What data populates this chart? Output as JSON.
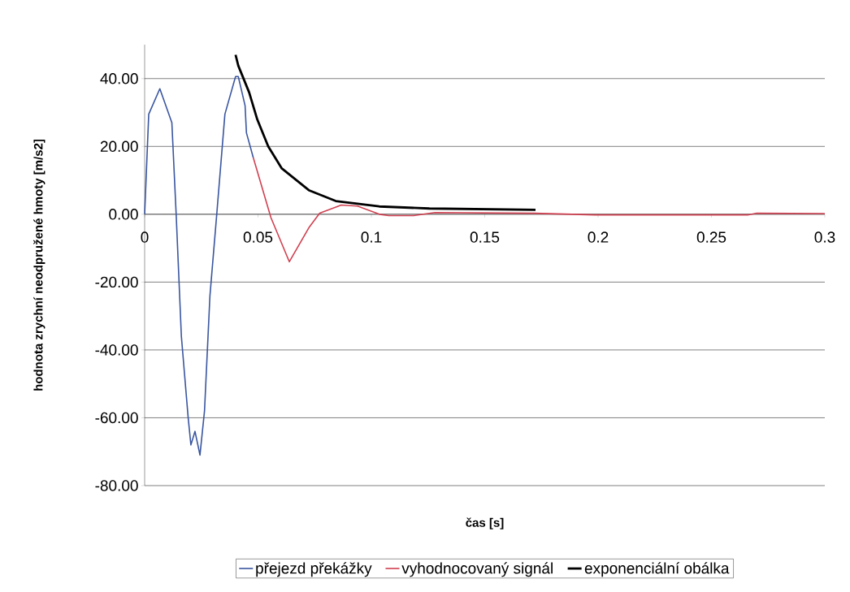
{
  "chart_data": {
    "type": "line",
    "xlabel": "čas [s]",
    "ylabel": "hodnota zrychní neodpružené hmoty [m/s2]",
    "xlim": [
      0,
      0.3
    ],
    "ylim": [
      -80,
      50
    ],
    "xticks": [
      0,
      0.05,
      0.1,
      0.15,
      0.2,
      0.25,
      0.3
    ],
    "yticks": [
      {
        "value": -80,
        "label": "-80.00"
      },
      {
        "value": -60,
        "label": "-60.00"
      },
      {
        "value": -40,
        "label": "-40.00"
      },
      {
        "value": -20,
        "label": "-20.00"
      },
      {
        "value": 0,
        "label": "0.00"
      },
      {
        "value": 20,
        "label": "20.00"
      },
      {
        "value": 40,
        "label": "40.00"
      }
    ],
    "grid": "y",
    "legend": "bottom",
    "marker": "none",
    "line_style": "solid",
    "series": [
      {
        "name": "přejezd překážky",
        "color": "#3a56a0",
        "x": [
          0,
          0.0018,
          0.0067,
          0.012,
          0.0139,
          0.0162,
          0.0192,
          0.0204,
          0.0222,
          0.0244,
          0.0264,
          0.0288,
          0.0318,
          0.0354,
          0.0401,
          0.0413,
          0.0443,
          0.0449,
          0.0479
        ],
        "values": [
          0,
          29.5,
          37,
          27,
          0,
          -36,
          -60,
          -68,
          -64,
          -71,
          -58,
          -24,
          0,
          29.5,
          40.6,
          40.6,
          32,
          24,
          16.7
        ]
      },
      {
        "name": "vyhodnocovaný signál",
        "color": "#d04050",
        "x": [
          0.0479,
          0.0557,
          0.0638,
          0.0724,
          0.0772,
          0.0867,
          0.0939,
          0.1035,
          0.1077,
          0.1186,
          0.128,
          0.172,
          0.1985,
          0.266,
          0.27,
          0.3
        ],
        "values": [
          16.7,
          -1,
          -14,
          -4,
          0.3,
          2.7,
          2.4,
          0,
          -0.4,
          -0.4,
          0.5,
          0.3,
          -0.2,
          -0.2,
          0.3,
          0.2
        ]
      },
      {
        "name": "exponenciální obálka",
        "color": "#000000",
        "x": [
          0.0401,
          0.0413,
          0.0461,
          0.0497,
          0.0545,
          0.0605,
          0.0724,
          0.0843,
          0.1035,
          0.1256,
          0.1724
        ],
        "values": [
          47,
          43.8,
          35.9,
          27.9,
          20,
          13.5,
          7.1,
          3.9,
          2.3,
          1.7,
          1.3
        ]
      }
    ]
  }
}
